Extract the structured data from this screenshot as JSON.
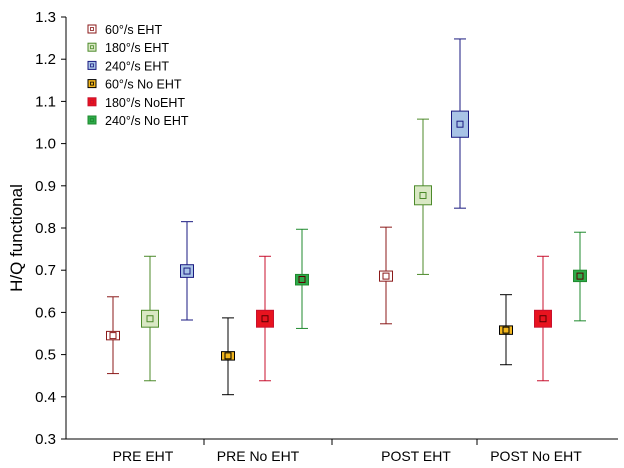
{
  "chart_data": {
    "type": "box",
    "title": "",
    "xlabel": "",
    "ylabel": "H/Q functional",
    "ylim": [
      0.3,
      1.3
    ],
    "yticks": [
      "0.3",
      "0.4",
      "0.5",
      "0.6",
      "0.7",
      "0.8",
      "0.9",
      "1.0",
      "1.1",
      "1.2",
      "1.3"
    ],
    "groups": [
      "PRE EHT",
      "PRE No EHT",
      "POST EHT",
      "POST No EHT"
    ],
    "series": [
      {
        "name": "60°/s EHT",
        "color": "#8b1a1a",
        "fill": "#ffffff",
        "group": "PRE EHT",
        "mean": 0.545,
        "box_low": 0.535,
        "box_high": 0.555,
        "whisker_low": 0.455,
        "whisker_high": 0.637
      },
      {
        "name": "180°/s EHT",
        "color": "#4c8a2a",
        "fill": "#d9e8c4",
        "group": "PRE EHT",
        "mean": 0.585,
        "box_low": 0.565,
        "box_high": 0.605,
        "whisker_low": 0.438,
        "whisker_high": 0.733
      },
      {
        "name": "240°/s EHT",
        "color": "#1a1a80",
        "fill": "#a8c3e6",
        "group": "PRE EHT",
        "mean": 0.698,
        "box_low": 0.683,
        "box_high": 0.713,
        "whisker_low": 0.582,
        "whisker_high": 0.815
      },
      {
        "name": "60°/s No EHT",
        "color": "#000000",
        "fill": "#f2b61e",
        "group": "PRE No EHT",
        "mean": 0.497,
        "box_low": 0.487,
        "box_high": 0.507,
        "whisker_low": 0.405,
        "whisker_high": 0.587
      },
      {
        "name": "180°/s NoEHT",
        "color": "#c8102e",
        "fill": "#e8131f",
        "group": "PRE No EHT",
        "mean": 0.585,
        "box_low": 0.565,
        "box_high": 0.605,
        "whisker_low": 0.438,
        "whisker_high": 0.733
      },
      {
        "name": "240°/s No EHT",
        "color": "#1f8a2e",
        "fill": "#2eaa4a",
        "group": "PRE No EHT",
        "mean": 0.678,
        "box_low": 0.665,
        "box_high": 0.69,
        "whisker_low": 0.562,
        "whisker_high": 0.797
      },
      {
        "name": "60°/s EHT",
        "color": "#8b1a1a",
        "fill": "#ffffff",
        "group": "POST EHT",
        "mean": 0.686,
        "box_low": 0.674,
        "box_high": 0.698,
        "whisker_low": 0.573,
        "whisker_high": 0.802
      },
      {
        "name": "180°/s EHT",
        "color": "#4c8a2a",
        "fill": "#d9e8c4",
        "group": "POST EHT",
        "mean": 0.877,
        "box_low": 0.855,
        "box_high": 0.9,
        "whisker_low": 0.69,
        "whisker_high": 1.058
      },
      {
        "name": "240°/s EHT",
        "color": "#1a1a80",
        "fill": "#a8c3e6",
        "group": "POST EHT",
        "mean": 1.046,
        "box_low": 1.015,
        "box_high": 1.077,
        "whisker_low": 0.847,
        "whisker_high": 1.248
      },
      {
        "name": "60°/s No EHT",
        "color": "#000000",
        "fill": "#f2b61e",
        "group": "POST No EHT",
        "mean": 0.558,
        "box_low": 0.548,
        "box_high": 0.568,
        "whisker_low": 0.476,
        "whisker_high": 0.642
      },
      {
        "name": "180°/s NoEHT",
        "color": "#c8102e",
        "fill": "#e8131f",
        "group": "POST No EHT",
        "mean": 0.585,
        "box_low": 0.565,
        "box_high": 0.605,
        "whisker_low": 0.438,
        "whisker_high": 0.733
      },
      {
        "name": "240°/s No EHT",
        "color": "#1f8a2e",
        "fill": "#2eaa4a",
        "group": "POST No EHT",
        "mean": 0.686,
        "box_low": 0.673,
        "box_high": 0.7,
        "whisker_low": 0.58,
        "whisker_high": 0.79
      }
    ],
    "legend": {
      "placement": "top-left",
      "entries": [
        {
          "label": "60°/s EHT",
          "color": "#8b1a1a",
          "fill": "#ffffff"
        },
        {
          "label": "180°/s EHT",
          "color": "#4c8a2a",
          "fill": "#d9e8c4"
        },
        {
          "label": "240°/s EHT",
          "color": "#1a1a80",
          "fill": "#a8c3e6"
        },
        {
          "label": "60°/s No EHT",
          "color": "#000000",
          "fill": "#f2b61e"
        },
        {
          "label": "180°/s NoEHT",
          "color": "#c8102e",
          "fill": "#e8131f"
        },
        {
          "label": "240°/s No EHT",
          "color": "#1f8a2e",
          "fill": "#2eaa4a"
        }
      ]
    },
    "grid": false
  }
}
